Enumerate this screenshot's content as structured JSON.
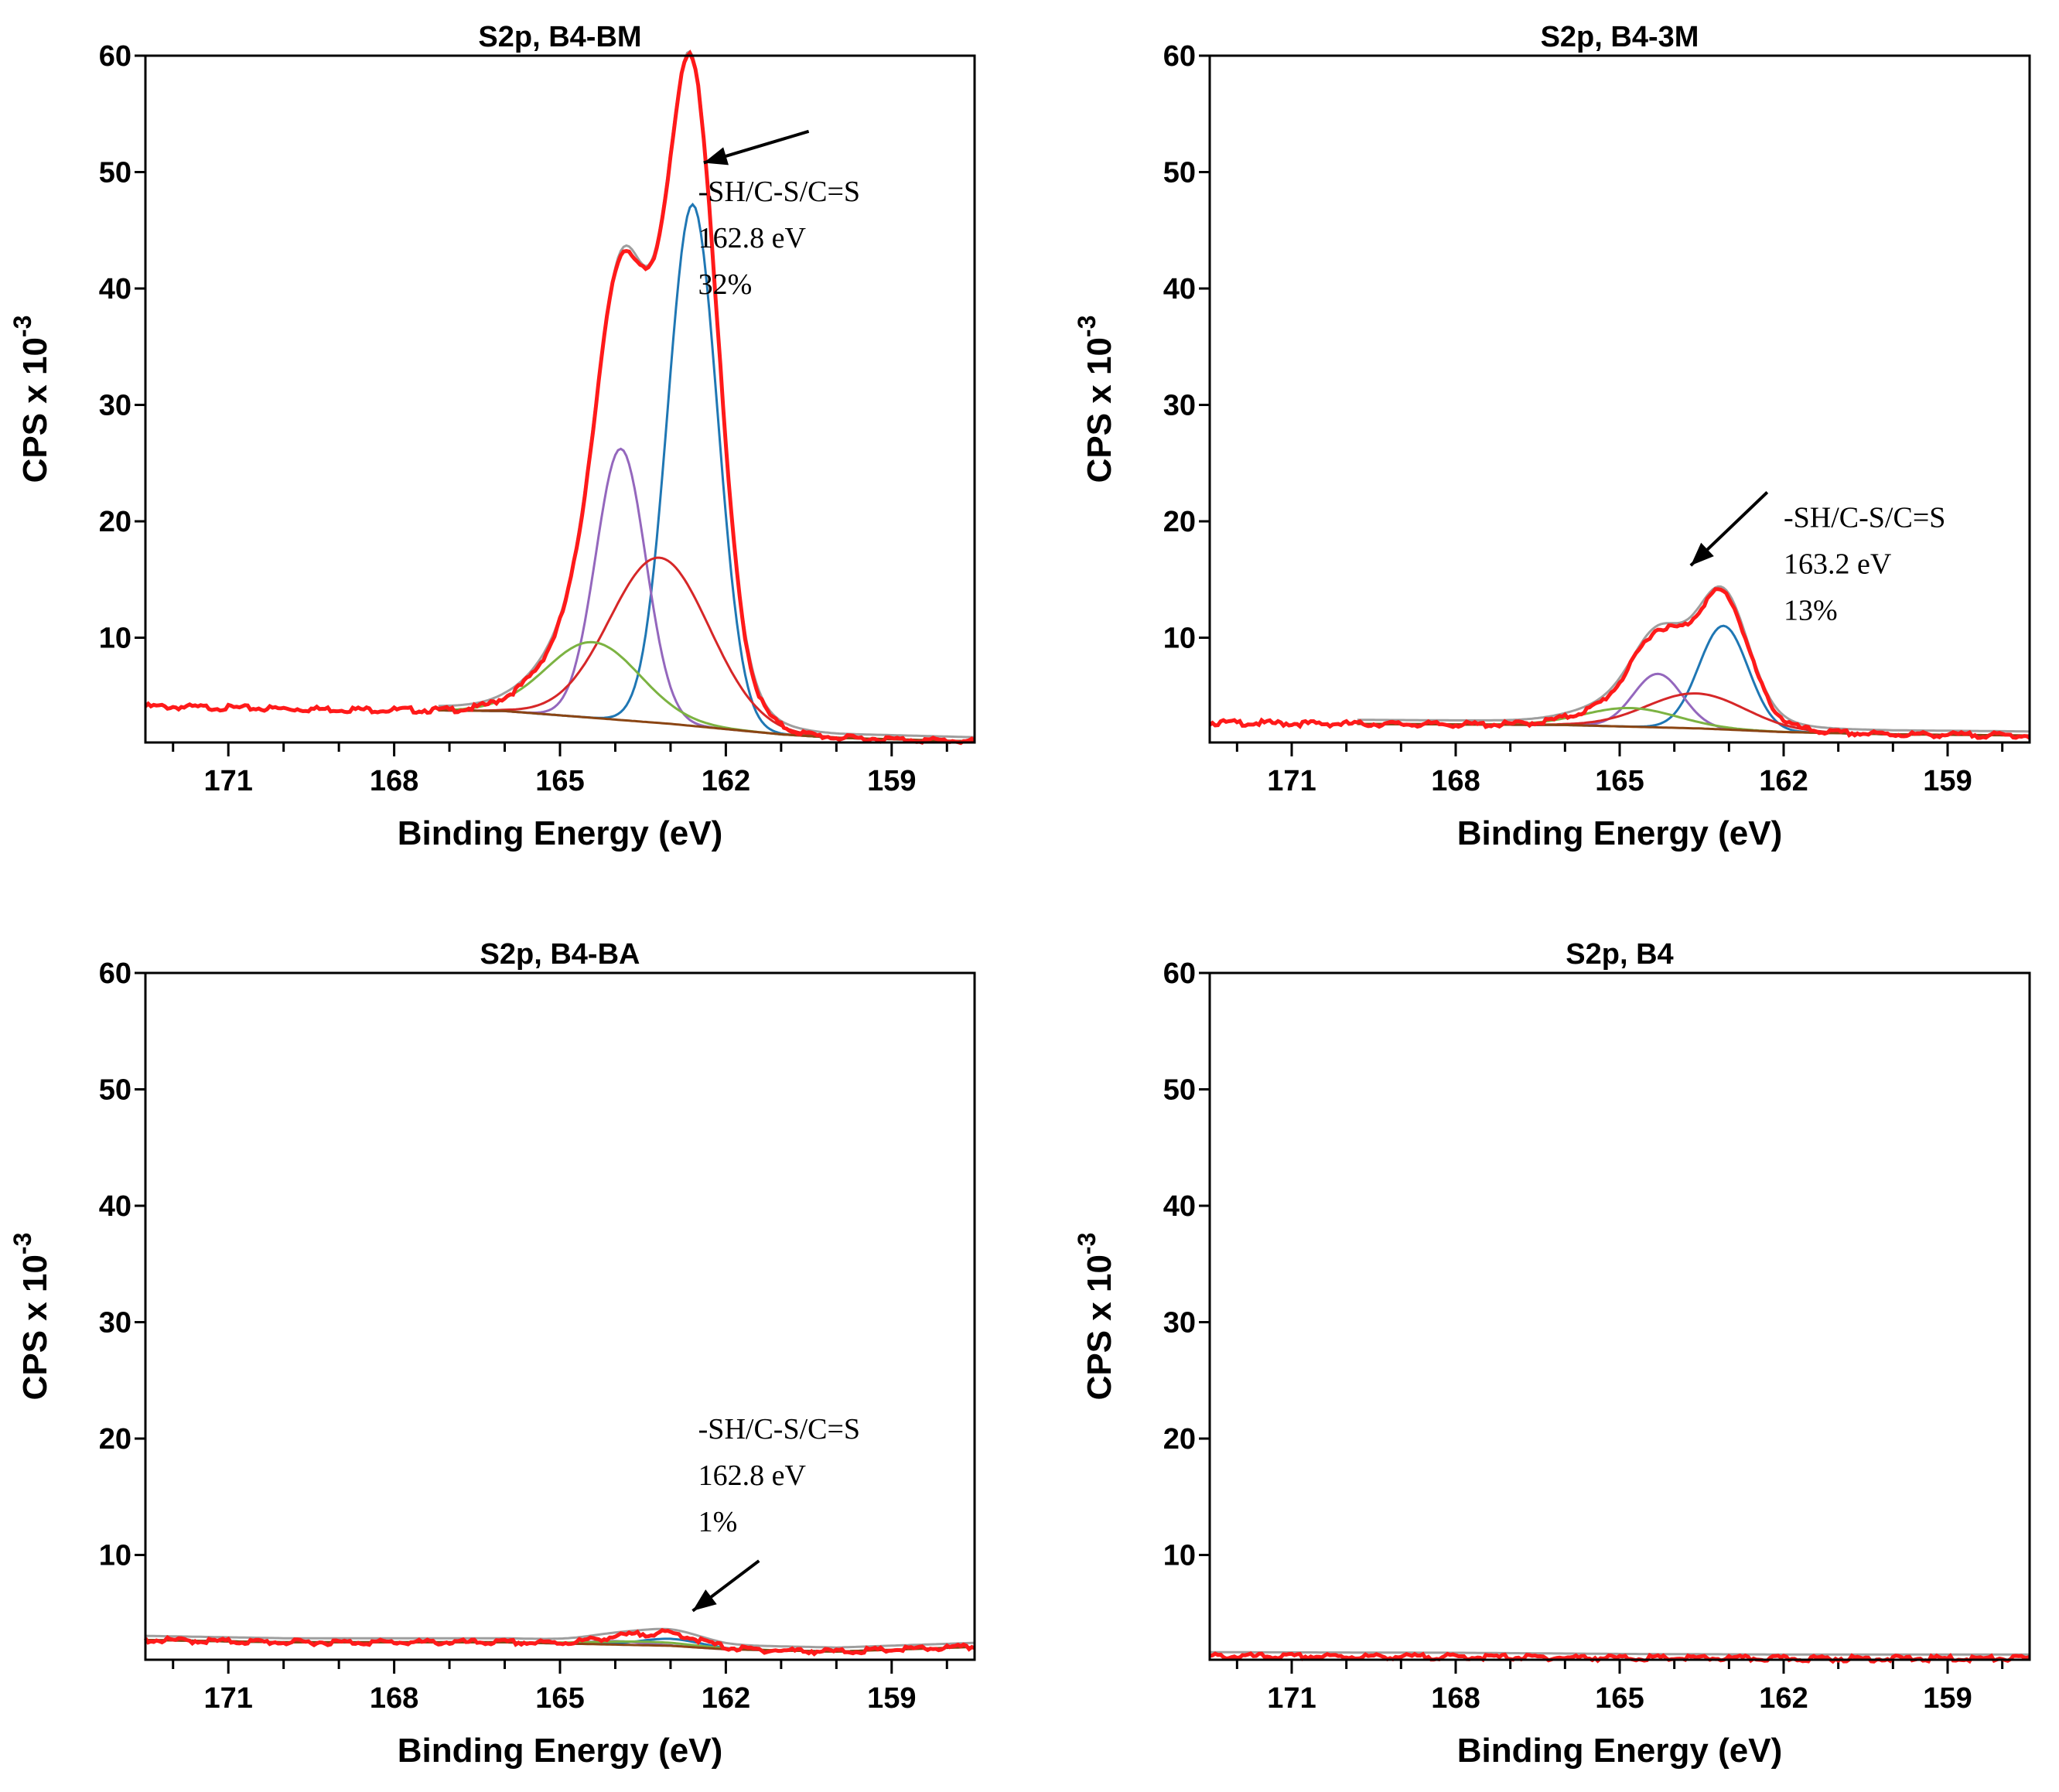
{
  "chart_data": [
    {
      "type": "line",
      "title": "S2p, B4-BM",
      "xlabel": "Binding Energy (eV)",
      "ylabel": {
        "main": "CPS x 10",
        "sup": "-3"
      },
      "xlim": [
        172.5,
        157.5
      ],
      "ylim": [
        1,
        60
      ],
      "xticks": [
        171,
        168,
        165,
        162,
        159
      ],
      "yticks": [
        10,
        20,
        30,
        40,
        50,
        60
      ],
      "grid": false,
      "annotation": {
        "lines": [
          "-SH/C-S/C=S",
          "162.8 eV",
          "32%"
        ],
        "arrow_from": [
          160.5,
          53.5
        ],
        "arrow_to": [
          162.4,
          50.8
        ],
        "text_at": [
          162.5,
          47.5
        ]
      },
      "envelope": {
        "background": [
          [
            172.5,
            4.1
          ],
          [
            170,
            3.9
          ],
          [
            166,
            3.7
          ],
          [
            163,
            2.6
          ],
          [
            161,
            1.7
          ],
          [
            160,
            1.4
          ],
          [
            157.5,
            1.1
          ]
        ],
        "peaks": [
          {
            "center": 162.6,
            "height": 44.8,
            "sigma": 0.45
          },
          {
            "center": 163.9,
            "height": 23.3,
            "sigma": 0.45
          },
          {
            "center": 163.2,
            "height": 14.2,
            "sigma": 0.9
          },
          {
            "center": 164.4,
            "height": 6.5,
            "sigma": 0.85
          }
        ]
      },
      "components": [
        {
          "name": "",
          "color": "#1f77b4",
          "center": 162.6,
          "height": 44.8,
          "sigma": 0.45
        },
        {
          "name": "",
          "color": "#9467bd",
          "center": 163.9,
          "height": 23.3,
          "sigma": 0.45
        },
        {
          "name": "",
          "color": "#d62728",
          "center": 163.2,
          "height": 14.2,
          "sigma": 0.9
        },
        {
          "name": "",
          "color": "#7cb342",
          "center": 164.4,
          "height": 6.5,
          "sigma": 0.85
        }
      ]
    },
    {
      "type": "line",
      "title": "S2p, B4-3M",
      "xlabel": "Binding Energy (eV)",
      "ylabel": {
        "main": "CPS x 10",
        "sup": "-3"
      },
      "xlim": [
        172.5,
        157.5
      ],
      "ylim": [
        1,
        60
      ],
      "xticks": [
        171,
        168,
        165,
        162,
        159
      ],
      "yticks": [
        10,
        20,
        30,
        40,
        50,
        60
      ],
      "grid": false,
      "annotation": {
        "lines": [
          "-SH/C-S/C=S",
          "163.2 eV",
          "13%"
        ],
        "arrow_from": [
          162.3,
          22.5
        ],
        "arrow_to": [
          163.7,
          16.2
        ],
        "text_at": [
          162.0,
          19.5
        ]
      },
      "envelope": {
        "background": [
          [
            172.5,
            2.7
          ],
          [
            170,
            2.6
          ],
          [
            166,
            2.5
          ],
          [
            163.5,
            2.2
          ],
          [
            162,
            1.9
          ],
          [
            160,
            1.7
          ],
          [
            157.5,
            1.6
          ]
        ],
        "peaks": [
          {
            "center": 163.1,
            "height": 8.9,
            "sigma": 0.45
          },
          {
            "center": 164.3,
            "height": 4.6,
            "sigma": 0.45
          },
          {
            "center": 163.6,
            "height": 3.0,
            "sigma": 0.9
          },
          {
            "center": 164.8,
            "height": 1.6,
            "sigma": 0.85
          }
        ]
      },
      "components": [
        {
          "name": "",
          "color": "#1f77b4",
          "center": 163.1,
          "height": 8.9,
          "sigma": 0.45
        },
        {
          "name": "",
          "color": "#9467bd",
          "center": 164.3,
          "height": 4.6,
          "sigma": 0.45
        },
        {
          "name": "",
          "color": "#d62728",
          "center": 163.6,
          "height": 3.0,
          "sigma": 0.9
        },
        {
          "name": "",
          "color": "#7cb342",
          "center": 164.8,
          "height": 1.6,
          "sigma": 0.85
        }
      ]
    },
    {
      "type": "line",
      "title": "S2p, B4-BA",
      "xlabel": "Binding Energy (eV)",
      "ylabel": {
        "main": "CPS x 10",
        "sup": "-3"
      },
      "xlim": [
        172.5,
        157.5
      ],
      "ylim": [
        1,
        60
      ],
      "xticks": [
        171,
        168,
        165,
        162,
        159
      ],
      "yticks": [
        10,
        20,
        30,
        40,
        50,
        60
      ],
      "grid": false,
      "annotation": {
        "lines": [
          "-SH/C-S/C=S",
          "162.8 eV",
          "1%"
        ],
        "arrow_from": [
          161.4,
          9.5
        ],
        "arrow_to": [
          162.6,
          5.2
        ],
        "text_at": [
          162.5,
          20.0
        ]
      },
      "envelope": {
        "background": [
          [
            172.5,
            2.7
          ],
          [
            170,
            2.5
          ],
          [
            166,
            2.5
          ],
          [
            163,
            2.2
          ],
          [
            162,
            1.9
          ],
          [
            160,
            1.7
          ],
          [
            157.5,
            2.1
          ]
        ],
        "peaks": [
          {
            "center": 163.0,
            "height": 1.0,
            "sigma": 0.55
          },
          {
            "center": 164.0,
            "height": 0.5,
            "sigma": 0.5
          }
        ]
      },
      "components": [
        {
          "name": "",
          "color": "#1f77b4",
          "center": 163.0,
          "height": 0.6,
          "sigma": 0.55
        },
        {
          "name": "",
          "color": "#9467bd",
          "center": 164.0,
          "height": 0.3,
          "sigma": 0.5
        },
        {
          "name": "",
          "color": "#7cb342",
          "center": 163.5,
          "height": 0.3,
          "sigma": 0.9
        }
      ]
    },
    {
      "type": "line",
      "title": "S2p, B4",
      "xlabel": "Binding Energy (eV)",
      "ylabel": {
        "main": "CPS x 10",
        "sup": "-3"
      },
      "xlim": [
        172.5,
        157.5
      ],
      "ylim": [
        1,
        60
      ],
      "xticks": [
        171,
        168,
        165,
        162,
        159
      ],
      "yticks": [
        10,
        20,
        30,
        40,
        50,
        60
      ],
      "grid": false,
      "annotation": null,
      "envelope": {
        "background": [
          [
            172.5,
            1.3
          ],
          [
            168,
            1.25
          ],
          [
            165,
            1.15
          ],
          [
            162,
            1.1
          ],
          [
            157.5,
            1.1
          ]
        ],
        "peaks": []
      },
      "components": []
    }
  ],
  "colors": {
    "envelope": "#ff1a1a",
    "background": "#8b4513",
    "raw": "#9e9e9e"
  }
}
